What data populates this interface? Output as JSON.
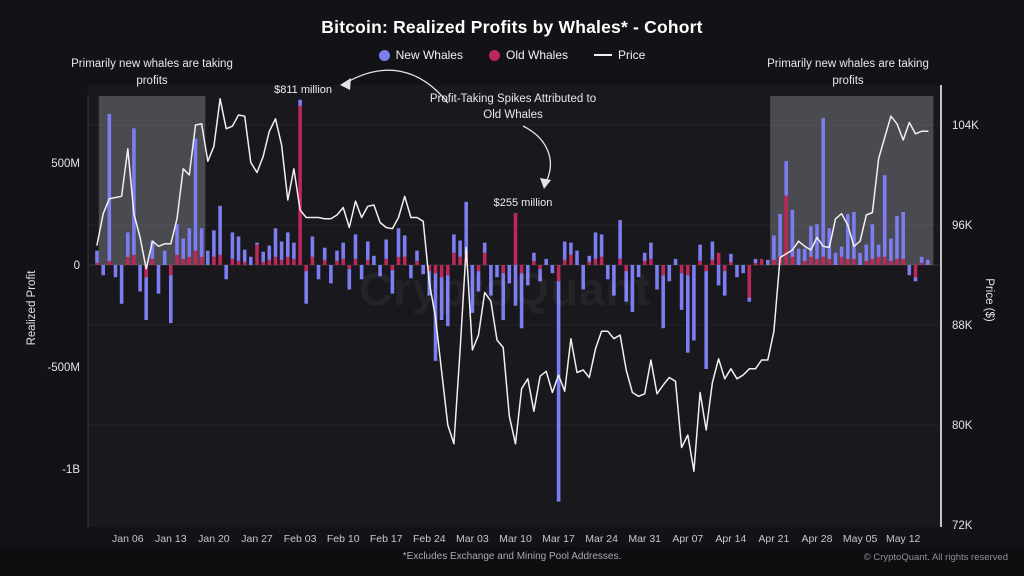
{
  "title": "Bitcoin: Realized Profits by Whales* - Cohort",
  "legend": {
    "new_whales": "New Whales",
    "old_whales": "Old Whales",
    "price": "Price"
  },
  "colors": {
    "new_whales": "#7b7df0",
    "old_whales": "#bb2859",
    "price": "#f0f0f2",
    "background": "#131317",
    "plot_background": "#18181d",
    "highlight": "rgba(210,210,220,0.27)",
    "axis_text": "#e2e2e7",
    "x_tick_text": "#c6c6cd"
  },
  "annotations": {
    "left_highlight": "Primarily new whales are taking profits",
    "right_highlight": "Primarily new whales are taking profits",
    "profit_taking": "Profit-Taking Spikes Attributed to Old Whales",
    "spike_811": "$811 million",
    "spike_255": "$255 million"
  },
  "watermark": "CryptoQuant",
  "footer": {
    "note": "*Excludes Exchange and Mining Pool Addresses.",
    "copyright": "© CryptoQuant. All rights reserved"
  },
  "chart_data": {
    "type": "bar",
    "subtype": "stacked bars (realized profit, $M) + price line on right axis",
    "n_days": 136,
    "x_start": "Jan 01",
    "x_end": "May 16",
    "left_axis": {
      "label": "Realized Profit",
      "ylim": [
        -1275,
        835
      ],
      "ticks": [
        {
          "label": "500M",
          "value": 500
        },
        {
          "label": "0",
          "value": 0
        },
        {
          "label": "-500M",
          "value": -500
        },
        {
          "label": "-1B",
          "value": -1000
        }
      ]
    },
    "right_axis": {
      "label": "Price ($)",
      "ylim": [
        72,
        106.4
      ],
      "ticks": [
        {
          "label": "104K",
          "value": 104
        },
        {
          "label": "96K",
          "value": 96
        },
        {
          "label": "88K",
          "value": 88
        },
        {
          "label": "80K",
          "value": 80
        },
        {
          "label": "72K",
          "value": 72
        }
      ]
    },
    "x_ticks": [
      {
        "label": "Jan 06",
        "day": 5
      },
      {
        "label": "Jan 13",
        "day": 12
      },
      {
        "label": "Jan 20",
        "day": 19
      },
      {
        "label": "Jan 27",
        "day": 26
      },
      {
        "label": "Feb 03",
        "day": 33
      },
      {
        "label": "Feb 10",
        "day": 40
      },
      {
        "label": "Feb 17",
        "day": 47
      },
      {
        "label": "Feb 24",
        "day": 54
      },
      {
        "label": "Mar 03",
        "day": 61
      },
      {
        "label": "Mar 10",
        "day": 68
      },
      {
        "label": "Mar 17",
        "day": 75
      },
      {
        "label": "Mar 24",
        "day": 82
      },
      {
        "label": "Mar 31",
        "day": 89
      },
      {
        "label": "Apr 07",
        "day": 96
      },
      {
        "label": "Apr 14",
        "day": 103
      },
      {
        "label": "Apr 21",
        "day": 110
      },
      {
        "label": "Apr 28",
        "day": 117
      },
      {
        "label": "May 05",
        "day": 124
      },
      {
        "label": "May 12",
        "day": 131
      }
    ],
    "highlight_regions": [
      {
        "from_day": 0.3,
        "to_day": 17.6,
        "note": "Primarily new whales are taking profits"
      },
      {
        "from_day": 109.4,
        "to_day": 135.9,
        "note": "Primarily new whales are taking profits"
      }
    ],
    "series": [
      {
        "name": "New Whales",
        "type": "bar",
        "axis": "left",
        "unit": "million USD",
        "color": "#7b7df0",
        "values": [
          60,
          -50,
          720,
          -60,
          -190,
          120,
          620,
          -130,
          -210,
          90,
          -140,
          70,
          -235,
          150,
          100,
          140,
          550,
          140,
          70,
          130,
          240,
          -70,
          130,
          120,
          60,
          40,
          10,
          50,
          70,
          140,
          90,
          120,
          80,
          30,
          -160,
          100,
          -70,
          60,
          -90,
          50,
          80,
          -100,
          120,
          -70,
          90,
          45,
          -55,
          95,
          -115,
          140,
          105,
          -65,
          50,
          -45,
          -120,
          -430,
          -210,
          -250,
          90,
          80,
          260,
          -235,
          -100,
          50,
          -150,
          -60,
          -230,
          -90,
          -200,
          -270,
          -100,
          40,
          -60,
          30,
          -40,
          -1080,
          90,
          60,
          70,
          -120,
          30,
          130,
          110,
          -70,
          -150,
          190,
          -150,
          -230,
          -60,
          40,
          80,
          -120,
          -260,
          -80,
          30,
          -180,
          -380,
          -370,
          80,
          -480,
          90,
          -100,
          -120,
          40,
          -60,
          -40,
          -20,
          20,
          0,
          25,
          120,
          210,
          170,
          230,
          80,
          60,
          150,
          170,
          680,
          150,
          60,
          50,
          220,
          230,
          60,
          80,
          170,
          60,
          400,
          110,
          210,
          230,
          -50,
          -20,
          30,
          25
        ]
      },
      {
        "name": "Old Whales",
        "type": "bar",
        "axis": "left",
        "unit": "million USD",
        "color": "#bb2859",
        "values": [
          10,
          0,
          20,
          0,
          0,
          40,
          50,
          0,
          -60,
          30,
          0,
          0,
          -50,
          50,
          30,
          40,
          70,
          40,
          0,
          40,
          50,
          0,
          30,
          20,
          15,
          0,
          100,
          15,
          25,
          40,
          25,
          40,
          30,
          780,
          -30,
          40,
          0,
          25,
          0,
          20,
          30,
          -20,
          30,
          0,
          25,
          0,
          0,
          30,
          -25,
          40,
          40,
          0,
          20,
          0,
          -30,
          -40,
          -60,
          -50,
          60,
          40,
          50,
          0,
          -30,
          60,
          0,
          0,
          -40,
          0,
          255,
          -40,
          0,
          20,
          -20,
          0,
          0,
          -80,
          25,
          50,
          0,
          0,
          15,
          30,
          40,
          0,
          0,
          30,
          -30,
          0,
          0,
          20,
          30,
          0,
          -50,
          0,
          0,
          -40,
          -50,
          0,
          20,
          -30,
          25,
          60,
          -30,
          15,
          0,
          0,
          -160,
          10,
          30,
          0,
          25,
          40,
          340,
          40,
          0,
          20,
          40,
          30,
          40,
          30,
          0,
          40,
          30,
          30,
          0,
          20,
          30,
          40,
          40,
          20,
          30,
          30,
          0,
          -60,
          10,
          0
        ]
      },
      {
        "name": "Price",
        "type": "line",
        "axis": "right",
        "unit": "thousand USD",
        "color": "#f0f0f2",
        "values": [
          94.4,
          96.9,
          98.1,
          98.2,
          98.3,
          102.1,
          96.9,
          95.0,
          92.5,
          94.7,
          94.3,
          94.5,
          94.5,
          96.5,
          100.5,
          100.0,
          104.0,
          104.1,
          101.1,
          102.3,
          106.1,
          103.7,
          103.9,
          104.8,
          104.7,
          101.0,
          100.2,
          101.5,
          103.5,
          104.5,
          102.4,
          98.0,
          100.5,
          97.2,
          96.6,
          96.6,
          96.6,
          96.5,
          96.5,
          96.8,
          97.4,
          95.8,
          97.9,
          96.6,
          97.5,
          97.6,
          96.2,
          95.8,
          95.7,
          96.6,
          98.3,
          96.6,
          96.6,
          96.3,
          91.4,
          88.6,
          84.3,
          80.0,
          78.5,
          86.0,
          94.2,
          86.0,
          87.2,
          90.6,
          89.9,
          86.8,
          86.2,
          80.7,
          78.5,
          82.9,
          83.7,
          81.1,
          83.9,
          84.3,
          82.6,
          84.0,
          82.7,
          86.9,
          84.2,
          84.4,
          83.8,
          86.1,
          87.5,
          87.5,
          86.9,
          87.2,
          84.4,
          82.6,
          82.3,
          82.5,
          85.2,
          82.5,
          83.2,
          83.8,
          83.5,
          78.2,
          79.2,
          76.3,
          82.6,
          79.6,
          83.4,
          85.3,
          83.7,
          84.5,
          83.7,
          84.0,
          84.5,
          84.5,
          85.2,
          85.2,
          87.5,
          93.4,
          93.7,
          94.0,
          94.7,
          94.3,
          94.0,
          95.0,
          94.3,
          94.2,
          96.5,
          96.9,
          96.0,
          94.3,
          94.7,
          96.8,
          97.0,
          101.3,
          103.0,
          104.7,
          104.1,
          102.8,
          104.2,
          103.3,
          103.5,
          103.5
        ]
      }
    ]
  }
}
